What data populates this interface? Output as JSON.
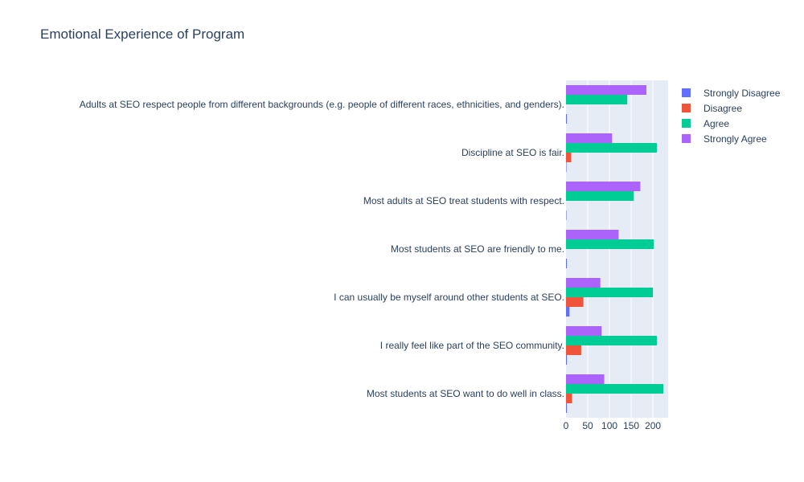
{
  "chart_data": {
    "type": "bar",
    "orientation": "horizontal",
    "title": "Emotional Experience of Program",
    "xlim": [
      0,
      235
    ],
    "x_ticks": [
      0,
      50,
      100,
      150,
      200
    ],
    "grid": true,
    "legend_position": "top-right",
    "categories": [
      "Adults at SEO respect people from different backgrounds (e.g. people of different races, ethnicities, and genders).",
      "Discipline at SEO is fair.",
      "Most adults at SEO treat students with respect.",
      "Most students at SEO are friendly to me.",
      "I can usually be myself around other students at SEO.",
      "I really feel like part of the SEO community.",
      "Most students at SEO want to do well in class."
    ],
    "series": [
      {
        "name": "Strongly Disagree",
        "color": "#636efa",
        "values": [
          2,
          1,
          1,
          2,
          8,
          2,
          2
        ]
      },
      {
        "name": "Disagree",
        "color": "#EF553B",
        "values": [
          0,
          12,
          0,
          0,
          40,
          35,
          14
        ]
      },
      {
        "name": "Agree",
        "color": "#00cc96",
        "values": [
          141,
          209,
          156,
          202,
          200,
          209,
          224
        ]
      },
      {
        "name": "Strongly Agree",
        "color": "#ab63fa",
        "values": [
          185,
          106,
          171,
          121,
          79,
          82,
          88
        ]
      }
    ]
  }
}
